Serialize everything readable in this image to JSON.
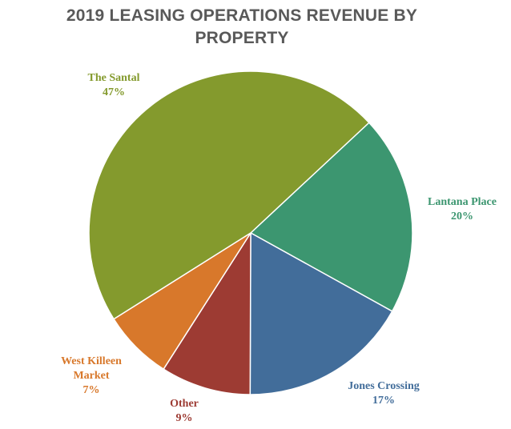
{
  "chart_data": {
    "type": "pie",
    "title_lines": [
      "2019 LEASING OPERATIONS REVENUE BY",
      "PROPERTY"
    ],
    "slices": [
      {
        "name": "Lantana Place",
        "value": 20,
        "label": "20%",
        "color": "#3c9670",
        "label_lines": [
          "Lantana Place"
        ]
      },
      {
        "name": "Jones Crossing",
        "value": 17,
        "label": "17%",
        "color": "#426d9a",
        "label_lines": [
          "Jones Crossing"
        ]
      },
      {
        "name": "Other",
        "value": 9,
        "label": "9%",
        "color": "#9d3b33",
        "label_lines": [
          "Other"
        ]
      },
      {
        "name": "West Killeen Market",
        "value": 7,
        "label": "7%",
        "color": "#d8782b",
        "label_lines": [
          "West Killeen",
          "Market"
        ]
      },
      {
        "name": "The Santal",
        "value": 47,
        "label": "47%",
        "color": "#849a2d",
        "label_lines": [
          "The Santal"
        ]
      }
    ],
    "start_angle_deg": 47,
    "direction": "clockwise"
  }
}
